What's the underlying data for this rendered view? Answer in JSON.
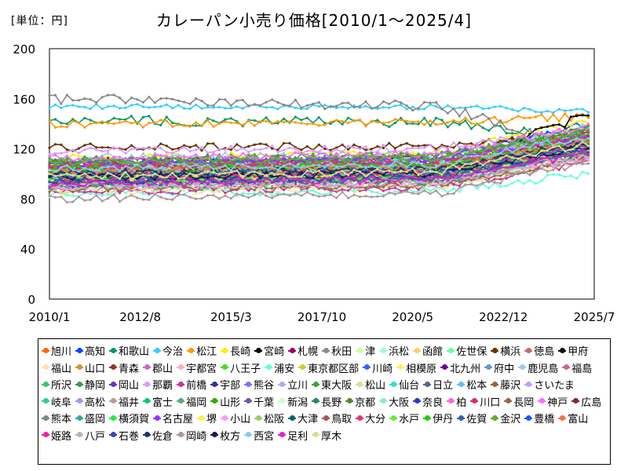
{
  "chart_data": {
    "type": "line",
    "title": "カレーパン小売り価格[2010/1～2025/4]",
    "unit_label": "[単位：円]",
    "x_ticks": [
      "2010/1",
      "2012/8",
      "2015/3",
      "2017/10",
      "2020/5",
      "2022/12",
      "2025/7"
    ],
    "y_ticks": [
      0,
      40,
      80,
      120,
      160,
      200
    ],
    "ylim": [
      0,
      200
    ],
    "x_range": [
      "2010/1",
      "2025/7"
    ],
    "grid": false,
    "legend_position": "bottom",
    "series": [
      {
        "name": "旭川",
        "color": "#ff6600",
        "start": 100,
        "end": 130,
        "wave": 4
      },
      {
        "name": "高知",
        "color": "#0044ff",
        "start": 108,
        "end": 140,
        "wave": 3
      },
      {
        "name": "和歌山",
        "color": "#009966",
        "start": 143,
        "end": 128,
        "wave": 4
      },
      {
        "name": "今治",
        "color": "#33ccff",
        "start": 154,
        "end": 150,
        "wave": 2
      },
      {
        "name": "松江",
        "color": "#ff9900",
        "start": 140,
        "end": 146,
        "wave": 3
      },
      {
        "name": "長崎",
        "color": "#ffee00",
        "start": 112,
        "end": 142,
        "wave": 3
      },
      {
        "name": "宮崎",
        "color": "#000000",
        "start": 94,
        "end": 148,
        "wave": 4
      },
      {
        "name": "札幌",
        "color": "#990066",
        "start": 110,
        "end": 125,
        "wave": 3
      },
      {
        "name": "秋田",
        "color": "#888888",
        "start": 160,
        "end": 120,
        "wave": 4
      },
      {
        "name": "津",
        "color": "#ccff99",
        "start": 92,
        "end": 120,
        "wave": 3
      },
      {
        "name": "浜松",
        "color": "#99ffcc",
        "start": 96,
        "end": 125,
        "wave": 3
      },
      {
        "name": "函館",
        "color": "#ffcc66",
        "start": 102,
        "end": 132,
        "wave": 3
      },
      {
        "name": "佐世保",
        "color": "#66ff99",
        "start": 105,
        "end": 138,
        "wave": 3
      },
      {
        "name": "横浜",
        "color": "#663300",
        "start": 121,
        "end": 130,
        "wave": 3
      },
      {
        "name": "徳島",
        "color": "#cc6666",
        "start": 98,
        "end": 115,
        "wave": 3
      },
      {
        "name": "甲府",
        "color": "#111111",
        "start": 104,
        "end": 128,
        "wave": 3
      },
      {
        "name": "福山",
        "color": "#ffe0b0",
        "start": 85,
        "end": 112,
        "wave": 3
      },
      {
        "name": "山口",
        "color": "#cc9933",
        "start": 99,
        "end": 120,
        "wave": 3
      },
      {
        "name": "青森",
        "color": "#993333",
        "start": 95,
        "end": 118,
        "wave": 3
      },
      {
        "name": "郡山",
        "color": "#cc66cc",
        "start": 90,
        "end": 114,
        "wave": 3
      },
      {
        "name": "宇都宮",
        "color": "#ffaacc",
        "start": 88,
        "end": 120,
        "wave": 3
      },
      {
        "name": "八王子",
        "color": "#44dd22",
        "start": 107,
        "end": 132,
        "wave": 3
      },
      {
        "name": "浦安",
        "color": "#66ffdd",
        "start": 84,
        "end": 100,
        "wave": 3
      },
      {
        "name": "東京都区部",
        "color": "#cccc33",
        "start": 103,
        "end": 136,
        "wave": 3
      },
      {
        "name": "川崎",
        "color": "#3366ff",
        "start": 109,
        "end": 133,
        "wave": 3
      },
      {
        "name": "相模原",
        "color": "#ffee66",
        "start": 91,
        "end": 118,
        "wave": 3
      },
      {
        "name": "北九州",
        "color": "#660099",
        "start": 101,
        "end": 125,
        "wave": 3
      },
      {
        "name": "府中",
        "color": "#6699cc",
        "start": 96,
        "end": 122,
        "wave": 3
      },
      {
        "name": "鹿児島",
        "color": "#99ccff",
        "start": 113,
        "end": 130,
        "wave": 3
      },
      {
        "name": "福島",
        "color": "#cc6699",
        "start": 89,
        "end": 116,
        "wave": 3
      },
      {
        "name": "所沢",
        "color": "#33cc66",
        "start": 97,
        "end": 124,
        "wave": 3
      },
      {
        "name": "静岡",
        "color": "#339966",
        "start": 100,
        "end": 126,
        "wave": 3
      },
      {
        "name": "岡山",
        "color": "#6633cc",
        "start": 93,
        "end": 121,
        "wave": 3
      },
      {
        "name": "那覇",
        "color": "#dd99ff",
        "start": 118,
        "end": 135,
        "wave": 3
      },
      {
        "name": "前橋",
        "color": "#cc3399",
        "start": 86,
        "end": 110,
        "wave": 3
      },
      {
        "name": "宇部",
        "color": "#333399",
        "start": 95,
        "end": 119,
        "wave": 3
      },
      {
        "name": "熊谷",
        "color": "#7777ff",
        "start": 99,
        "end": 127,
        "wave": 3
      },
      {
        "name": "立川",
        "color": "#aaaaff",
        "start": 106,
        "end": 131,
        "wave": 3
      },
      {
        "name": "東大阪",
        "color": "#33aa33",
        "start": 111,
        "end": 134,
        "wave": 3
      },
      {
        "name": "松山",
        "color": "#dddd99",
        "start": 87,
        "end": 113,
        "wave": 3
      },
      {
        "name": "仙台",
        "color": "#33ddcc",
        "start": 101,
        "end": 129,
        "wave": 3
      },
      {
        "name": "日立",
        "color": "#556688",
        "start": 94,
        "end": 117,
        "wave": 3
      },
      {
        "name": "松本",
        "color": "#66bbff",
        "start": 98,
        "end": 123,
        "wave": 3
      },
      {
        "name": "藤沢",
        "color": "#996633",
        "start": 105,
        "end": 128,
        "wave": 3
      },
      {
        "name": "さいたま",
        "color": "#cc99ff",
        "start": 102,
        "end": 130,
        "wave": 3
      },
      {
        "name": "岐阜",
        "color": "#33cc99",
        "start": 92,
        "end": 120,
        "wave": 3
      },
      {
        "name": "高松",
        "color": "#9999ff",
        "start": 96,
        "end": 124,
        "wave": 3
      },
      {
        "name": "福井",
        "color": "#bb9999",
        "start": 90,
        "end": 112,
        "wave": 3
      },
      {
        "name": "富士",
        "color": "#00cc66",
        "start": 103,
        "end": 127,
        "wave": 3
      },
      {
        "name": "福岡",
        "color": "#55aa77",
        "start": 108,
        "end": 133,
        "wave": 3
      },
      {
        "name": "山形",
        "color": "#33aa00",
        "start": 97,
        "end": 121,
        "wave": 3
      },
      {
        "name": "千葉",
        "color": "#7755aa",
        "start": 104,
        "end": 129,
        "wave": 3
      },
      {
        "name": "新潟",
        "color": "#ccffcc",
        "start": 89,
        "end": 115,
        "wave": 3
      },
      {
        "name": "長野",
        "color": "#228866",
        "start": 95,
        "end": 118,
        "wave": 3
      },
      {
        "name": "京都",
        "color": "#558833",
        "start": 110,
        "end": 136,
        "wave": 3
      },
      {
        "name": "大阪",
        "color": "#88eebb",
        "start": 99,
        "end": 126,
        "wave": 3
      },
      {
        "name": "奈良",
        "color": "#3333cc",
        "start": 93,
        "end": 119,
        "wave": 3
      },
      {
        "name": "柏",
        "color": "#ff66cc",
        "start": 100,
        "end": 125,
        "wave": 3
      },
      {
        "name": "川口",
        "color": "#cc3366",
        "start": 106,
        "end": 131,
        "wave": 3
      },
      {
        "name": "長岡",
        "color": "#996644",
        "start": 88,
        "end": 112,
        "wave": 3
      },
      {
        "name": "神戸",
        "color": "#ff66ff",
        "start": 112,
        "end": 137,
        "wave": 3
      },
      {
        "name": "広島",
        "color": "#882233",
        "start": 101,
        "end": 127,
        "wave": 3
      },
      {
        "name": "熊本",
        "color": "#778888",
        "start": 94,
        "end": 120,
        "wave": 3
      },
      {
        "name": "盛岡",
        "color": "#33aa99",
        "start": 91,
        "end": 116,
        "wave": 3
      },
      {
        "name": "横須賀",
        "color": "#22ee44",
        "start": 98,
        "end": 124,
        "wave": 3
      },
      {
        "name": "名古屋",
        "color": "#9933ff",
        "start": 107,
        "end": 132,
        "wave": 3
      },
      {
        "name": "堺",
        "color": "#ffee44",
        "start": 96,
        "end": 121,
        "wave": 3
      },
      {
        "name": "小山",
        "color": "#ff99ee",
        "start": 90,
        "end": 114,
        "wave": 3
      },
      {
        "name": "松阪",
        "color": "#99cc66",
        "start": 102,
        "end": 126,
        "wave": 3
      },
      {
        "name": "大津",
        "color": "#006666",
        "start": 97,
        "end": 123,
        "wave": 3
      },
      {
        "name": "鳥取",
        "color": "#aa5555",
        "start": 93,
        "end": 117,
        "wave": 3
      },
      {
        "name": "大分",
        "color": "#ee3366",
        "start": 105,
        "end": 129,
        "wave": 3
      },
      {
        "name": "水戸",
        "color": "#66ee33",
        "start": 95,
        "end": 120,
        "wave": 3
      },
      {
        "name": "伊丹",
        "color": "#22cc00",
        "start": 103,
        "end": 128,
        "wave": 3
      },
      {
        "name": "佐賀",
        "color": "#3366aa",
        "start": 92,
        "end": 118,
        "wave": 3
      },
      {
        "name": "金沢",
        "color": "#66aa33",
        "start": 109,
        "end": 134,
        "wave": 3
      },
      {
        "name": "豊橋",
        "color": "#2255ee",
        "start": 99,
        "end": 124,
        "wave": 3
      },
      {
        "name": "富山",
        "color": "#ee7744",
        "start": 101,
        "end": 126,
        "wave": 3
      },
      {
        "name": "姫路",
        "color": "#ee2299",
        "start": 96,
        "end": 122,
        "wave": 3
      },
      {
        "name": "八戸",
        "color": "#aabbbb",
        "start": 90,
        "end": 115,
        "wave": 3
      },
      {
        "name": "石巻",
        "color": "#3344bb",
        "start": 94,
        "end": 119,
        "wave": 3
      },
      {
        "name": "佐倉",
        "color": "#223366",
        "start": 100,
        "end": 125,
        "wave": 3
      },
      {
        "name": "岡崎",
        "color": "#aa9999",
        "start": 80,
        "end": 110,
        "wave": 3
      },
      {
        "name": "枚方",
        "color": "#1a1a55",
        "start": 97,
        "end": 122,
        "wave": 3
      },
      {
        "name": "西宮",
        "color": "#88ccee",
        "start": 104,
        "end": 130,
        "wave": 3
      },
      {
        "name": "足利",
        "color": "#dd22cc",
        "start": 92,
        "end": 117,
        "wave": 3
      },
      {
        "name": "厚木",
        "color": "#dddd88",
        "start": 98,
        "end": 124,
        "wave": 3
      }
    ]
  }
}
